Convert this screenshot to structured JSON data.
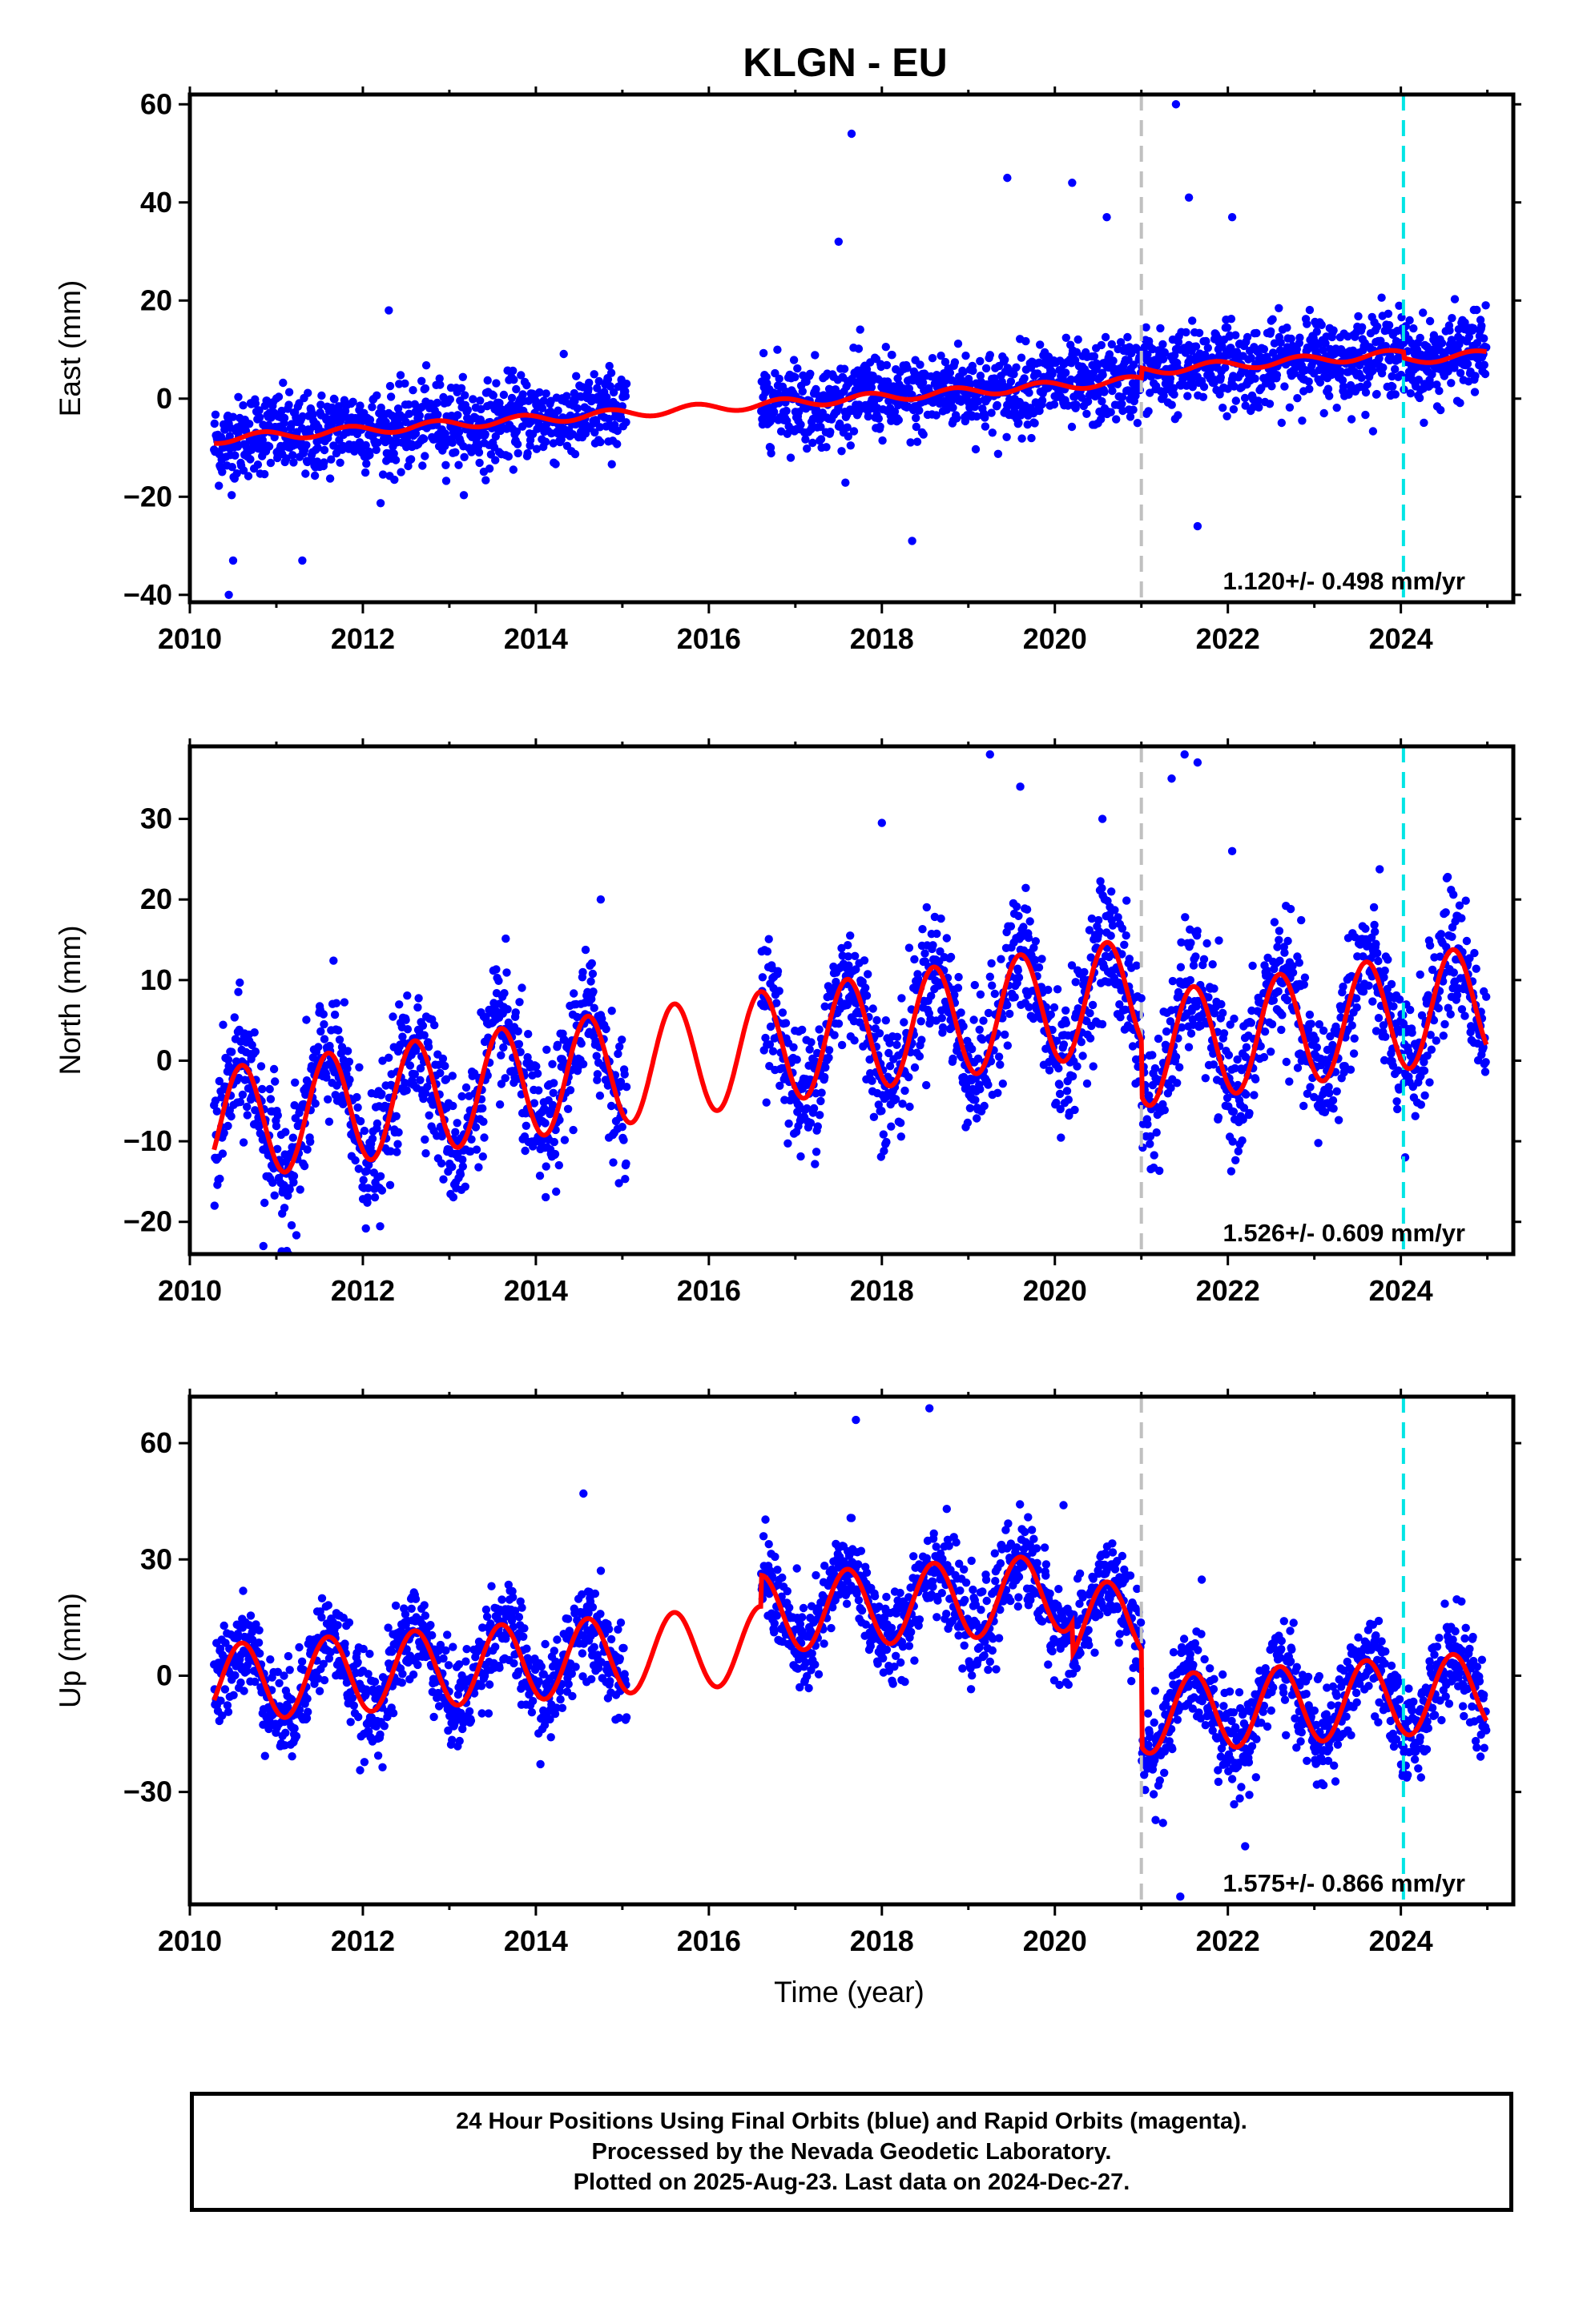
{
  "title": "KLGN - EU",
  "xlabel": "Time (year)",
  "colors": {
    "data": "#0000ff",
    "model": "#ff0000",
    "grey_line": "#c0c0c0",
    "cyan_line": "#00e5e5"
  },
  "footer": {
    "line1": "24 Hour Positions Using Final Orbits (blue) and Rapid Orbits (magenta).",
    "line2": "Processed by the Nevada Geodetic Laboratory.",
    "line3": "Plotted on 2025-Aug-23. Last data on 2024-Dec-27."
  },
  "chart_data": [
    {
      "type": "scatter",
      "component": "east",
      "ylabel": "East (mm)",
      "rate": "1.120+/- 0.498 mm/yr",
      "xlim": [
        2010,
        2025.3
      ],
      "ylim": [
        -41.5,
        62
      ],
      "xticks": [
        "2010",
        "2012",
        "2014",
        "2016",
        "2018",
        "2020",
        "2022",
        "2024"
      ],
      "yticks": [
        "−40",
        "−20",
        "0",
        "20",
        "40",
        "60"
      ],
      "ytick_values": [
        -40,
        -20,
        0,
        20,
        40,
        60
      ],
      "vlines": [
        {
          "x": 2021.0,
          "style": "grey-dashed"
        },
        {
          "x": 2024.03,
          "style": "cyan-dashed"
        }
      ],
      "data_gap": [
        2015.05,
        2016.6
      ],
      "model": {
        "trend_at_2010": -8.6,
        "rate": 1.12,
        "annual_amp": 0.9,
        "annual_phase": 0.6,
        "offsets": [
          {
            "x": 2021.0,
            "dy": 2.0
          },
          {
            "x": 2024.03,
            "dy": -1.2
          }
        ]
      },
      "scatter_sd": 4.2,
      "outliers": [
        {
          "x": 2017.65,
          "y": 54
        },
        {
          "x": 2019.45,
          "y": 45
        },
        {
          "x": 2020.2,
          "y": 44
        },
        {
          "x": 2021.4,
          "y": 60
        },
        {
          "x": 2021.55,
          "y": 41
        },
        {
          "x": 2022.05,
          "y": 37
        },
        {
          "x": 2012.3,
          "y": 18
        },
        {
          "x": 2010.45,
          "y": -40
        },
        {
          "x": 2010.5,
          "y": -33
        },
        {
          "x": 2011.3,
          "y": -33
        },
        {
          "x": 2018.35,
          "y": -29
        },
        {
          "x": 2021.65,
          "y": -26
        },
        {
          "x": 2020.6,
          "y": 37
        },
        {
          "x": 2017.5,
          "y": 32
        }
      ]
    },
    {
      "type": "scatter",
      "component": "north",
      "ylabel": "North (mm)",
      "rate": "1.526+/- 0.609 mm/yr",
      "xlim": [
        2010,
        2025.3
      ],
      "ylim": [
        -24,
        39
      ],
      "xticks": [
        "2010",
        "2012",
        "2014",
        "2016",
        "2018",
        "2020",
        "2022",
        "2024"
      ],
      "yticks": [
        "−20",
        "−10",
        "0",
        "10",
        "20",
        "30"
      ],
      "ytick_values": [
        -20,
        -10,
        0,
        10,
        20,
        30
      ],
      "vlines": [
        {
          "x": 2021.0,
          "style": "grey-dashed"
        },
        {
          "x": 2024.03,
          "style": "cyan-dashed"
        }
      ],
      "data_gap": [
        2015.05,
        2016.6
      ],
      "model": {
        "trend_at_2010": -8.5,
        "rate": 1.526,
        "annual_amp": 7.0,
        "annual_phase": 0.35,
        "offsets": [
          {
            "x": 2021.0,
            "dy": -7.0
          }
        ]
      },
      "scatter_sd": 4.0,
      "outliers": [
        {
          "x": 2019.25,
          "y": 38
        },
        {
          "x": 2021.5,
          "y": 38
        },
        {
          "x": 2021.65,
          "y": 37
        },
        {
          "x": 2021.35,
          "y": 35
        },
        {
          "x": 2019.6,
          "y": 34
        },
        {
          "x": 2020.55,
          "y": 30
        },
        {
          "x": 2018.0,
          "y": 29.5
        },
        {
          "x": 2014.75,
          "y": 20
        },
        {
          "x": 2010.85,
          "y": -23
        },
        {
          "x": 2022.05,
          "y": 26
        },
        {
          "x": 2024.05,
          "y": -12
        }
      ]
    },
    {
      "type": "scatter",
      "component": "up",
      "ylabel": "Up (mm)",
      "rate": "1.575+/- 0.866 mm/yr",
      "xlim": [
        2010,
        2025.3
      ],
      "ylim": [
        -59,
        72
      ],
      "xticks": [
        "2010",
        "2012",
        "2014",
        "2016",
        "2018",
        "2020",
        "2022",
        "2024"
      ],
      "yticks": [
        "−30",
        "0",
        "30",
        "60"
      ],
      "ytick_values": [
        -30,
        0,
        30,
        60
      ],
      "vlines": [
        {
          "x": 2021.0,
          "style": "grey-dashed"
        },
        {
          "x": 2024.03,
          "style": "cyan-dashed"
        }
      ],
      "data_gap": [
        2015.05,
        2016.6
      ],
      "model": {
        "trend_at_2010": -2.5,
        "rate": 1.575,
        "annual_amp": 10.0,
        "annual_phase": 0.35,
        "offsets": [
          {
            "x": 2016.6,
            "dy": 8.0
          },
          {
            "x": 2020.2,
            "dy": -8.0
          },
          {
            "x": 2021.0,
            "dy": -25.0
          }
        ]
      },
      "scatter_sd": 6.0,
      "outliers": [
        {
          "x": 2018.55,
          "y": 69
        },
        {
          "x": 2017.7,
          "y": 66
        },
        {
          "x": 2014.55,
          "y": 47
        },
        {
          "x": 2020.1,
          "y": 44
        },
        {
          "x": 2022.2,
          "y": -44
        },
        {
          "x": 2021.45,
          "y": -57
        },
        {
          "x": 2017.05,
          "y": -3
        },
        {
          "x": 2021.25,
          "y": -38
        }
      ]
    }
  ]
}
